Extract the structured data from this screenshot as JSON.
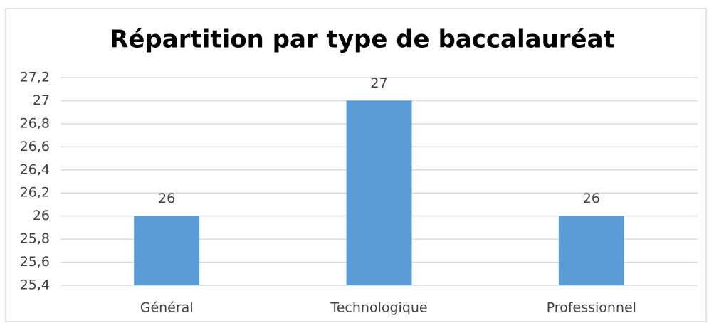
{
  "chart_data": {
    "type": "bar",
    "title": "Répartition par type de baccalauréat",
    "categories": [
      "Général",
      "Technologique",
      "Professionnel"
    ],
    "values": [
      26,
      27,
      26
    ],
    "color": "#5b9bd5",
    "ylim": [
      25.4,
      27.2
    ],
    "yticks": [
      {
        "value": 25.4,
        "label": "25,4"
      },
      {
        "value": 25.6,
        "label": "25,6"
      },
      {
        "value": 25.8,
        "label": "25,8"
      },
      26,
      {
        "value": 26.2,
        "label": "26,2"
      },
      {
        "value": 26.4,
        "label": "26,4"
      },
      {
        "value": 26.6,
        "label": "26,6"
      },
      {
        "value": 26.8,
        "label": "26,8"
      },
      27,
      {
        "value": 27.2,
        "label": "27,2"
      }
    ],
    "grid": true,
    "data_labels": true
  }
}
